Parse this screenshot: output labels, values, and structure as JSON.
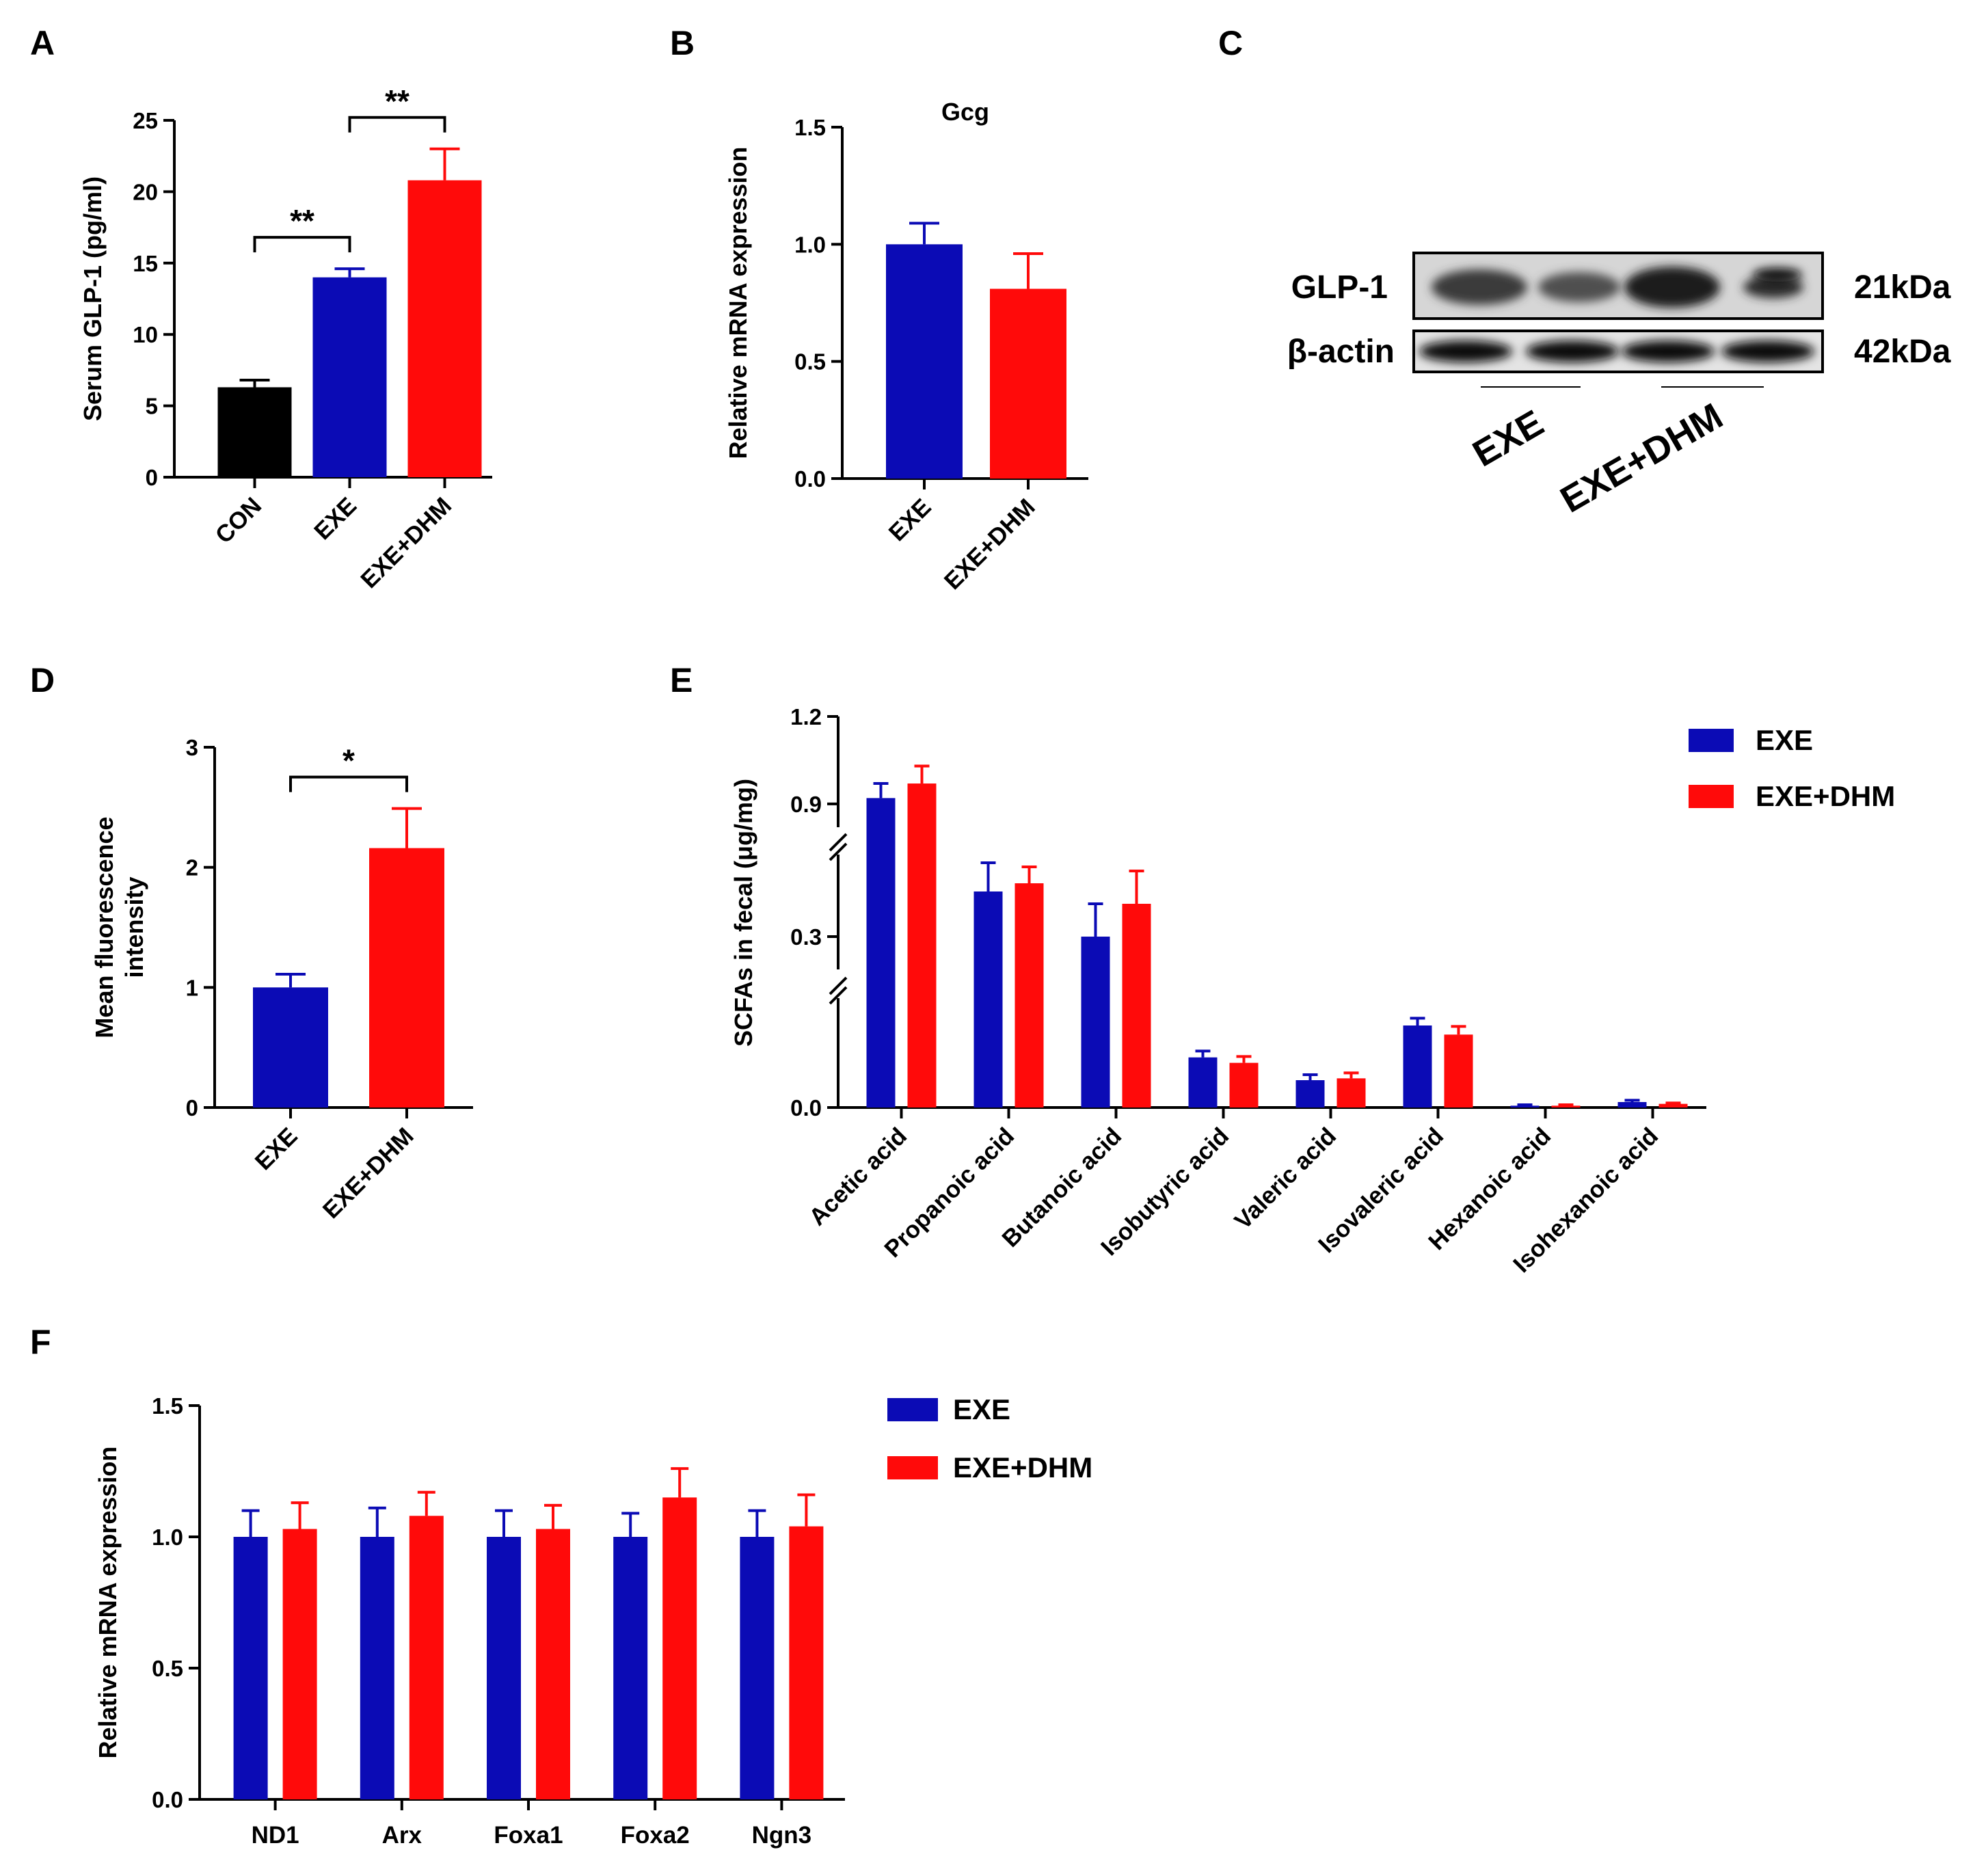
{
  "colors": {
    "CON": "#000000",
    "EXE": "#0b0bb5",
    "EXE+DHM": "#ff0a0a"
  },
  "panels": {
    "A": {
      "letter": "A",
      "chart_data": {
        "type": "bar",
        "ylabel": "Serum GLP-1 (pg/ml)",
        "categories": [
          "CON",
          "EXE",
          "EXE+DHM"
        ],
        "values": [
          6.3,
          14.0,
          20.8
        ],
        "errors": [
          0.5,
          0.6,
          2.2
        ],
        "colors": [
          "#000000",
          "#0b0bb5",
          "#ff0a0a"
        ],
        "ylim": [
          0,
          25
        ],
        "yticks": [
          0,
          5,
          10,
          15,
          20,
          25
        ],
        "significance": [
          {
            "from": 0,
            "to": 1,
            "label": "**"
          },
          {
            "from": 1,
            "to": 2,
            "label": "**"
          }
        ]
      }
    },
    "B": {
      "letter": "B",
      "chart_data": {
        "type": "bar",
        "title": "Gcg",
        "ylabel": "Relative mRNA expression",
        "categories": [
          "EXE",
          "EXE+DHM"
        ],
        "values": [
          1.0,
          0.81
        ],
        "errors": [
          0.09,
          0.15
        ],
        "colors": [
          "#0b0bb5",
          "#ff0a0a"
        ],
        "ylim": [
          0,
          1.5
        ],
        "yticks": [
          "0.0",
          "0.5",
          "1.0",
          "1.5"
        ]
      }
    },
    "C": {
      "letter": "C",
      "blot": {
        "rows": [
          {
            "label": "GLP-1",
            "size": "21kDa"
          },
          {
            "label": "β-actin",
            "size": "42kDa"
          }
        ],
        "groups": [
          "EXE",
          "EXE+DHM"
        ]
      }
    },
    "D": {
      "letter": "D",
      "chart_data": {
        "type": "bar",
        "ylabel": [
          "Mean fluorescence",
          "intensity"
        ],
        "categories": [
          "EXE",
          "EXE+DHM"
        ],
        "values": [
          1.0,
          2.16
        ],
        "errors": [
          0.11,
          0.33
        ],
        "colors": [
          "#0b0bb5",
          "#ff0a0a"
        ],
        "ylim": [
          0,
          3
        ],
        "yticks": [
          0,
          1,
          2,
          3
        ],
        "significance": [
          {
            "from": 0,
            "to": 1,
            "label": "*"
          }
        ]
      }
    },
    "E": {
      "letter": "E",
      "chart_data": {
        "type": "bar",
        "ylabel": "SCFAs in fecal (μg/mg)",
        "categories": [
          "Acetic acid",
          "Propanoic acid",
          "Butanoic acid",
          "Isobutyric acid",
          "Valeric acid",
          "Isovaleric acid",
          "Hexanoic acid",
          "Isohexanoic acid"
        ],
        "series": [
          {
            "name": "EXE",
            "values": [
              0.92,
              0.41,
              0.3,
              0.055,
              0.03,
              0.09,
              0.002,
              0.006
            ],
            "errors": [
              0.05,
              0.07,
              0.08,
              0.007,
              0.006,
              0.008,
              0.001,
              0.002
            ]
          },
          {
            "name": "EXE+DHM",
            "values": [
              0.97,
              0.43,
              0.38,
              0.049,
              0.032,
              0.08,
              0.002,
              0.004
            ],
            "errors": [
              0.06,
              0.04,
              0.08,
              0.007,
              0.006,
              0.009,
              0.001,
              0.001
            ]
          }
        ],
        "yticks": [
          "0.0",
          "0.3",
          "0.9",
          "1.2"
        ],
        "axis_breaks": true,
        "legend_position": "top-right"
      }
    },
    "F": {
      "letter": "F",
      "chart_data": {
        "type": "bar",
        "ylabel": "Relative mRNA expression",
        "categories": [
          "ND1",
          "Arx",
          "Foxa1",
          "Foxa2",
          "Ngn3"
        ],
        "series": [
          {
            "name": "EXE",
            "values": [
              1.0,
              1.0,
              1.0,
              1.0,
              1.0
            ],
            "errors": [
              0.1,
              0.11,
              0.1,
              0.09,
              0.1
            ]
          },
          {
            "name": "EXE+DHM",
            "values": [
              1.03,
              1.08,
              1.03,
              1.15,
              1.04
            ],
            "errors": [
              0.1,
              0.09,
              0.09,
              0.11,
              0.12
            ]
          }
        ],
        "ylim": [
          0,
          1.5
        ],
        "yticks": [
          "0.0",
          "0.5",
          "1.0",
          "1.5"
        ],
        "legend_position": "top-right"
      }
    }
  }
}
